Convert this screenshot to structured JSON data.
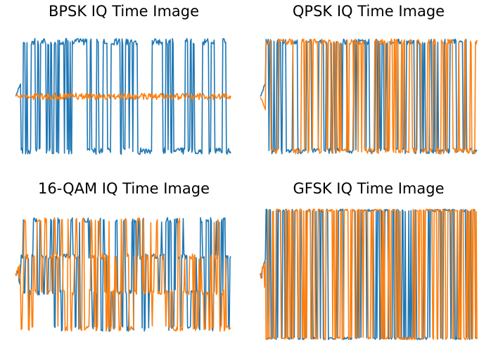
{
  "figure": {
    "colors": {
      "i_channel": "#1f77b4",
      "q_channel": "#ff7f0e",
      "background": "#ffffff"
    }
  },
  "chart_data": [
    {
      "type": "line",
      "title": "BPSK IQ Time Image",
      "axes_visible": false,
      "grid": false,
      "n_samples": 300,
      "ylim": [
        -1.3,
        1.3
      ],
      "pattern": "binary_symbols",
      "series": [
        {
          "channel": "I",
          "color": "#1f77b4",
          "amplitude": 1.0,
          "noise": 0.06,
          "symbol_levels": [
            -1,
            1
          ]
        },
        {
          "channel": "Q",
          "color": "#ff7f0e",
          "amplitude": 0.0,
          "noise": 0.06,
          "symbol_levels": [
            0
          ]
        }
      ]
    },
    {
      "type": "line",
      "title": "QPSK IQ Time Image",
      "axes_visible": false,
      "grid": false,
      "n_samples": 300,
      "ylim": [
        -1.3,
        1.3
      ],
      "pattern": "binary_symbols",
      "series": [
        {
          "channel": "I",
          "color": "#1f77b4",
          "amplitude": 1.0,
          "noise": 0.05,
          "symbol_levels": [
            -1,
            1
          ]
        },
        {
          "channel": "Q",
          "color": "#ff7f0e",
          "amplitude": 1.0,
          "noise": 0.05,
          "symbol_levels": [
            -1,
            1
          ]
        }
      ]
    },
    {
      "type": "line",
      "title": "16-QAM IQ Time Image",
      "axes_visible": false,
      "grid": false,
      "n_samples": 300,
      "ylim": [
        -1.3,
        1.3
      ],
      "pattern": "multilevel_symbols",
      "series": [
        {
          "channel": "I",
          "color": "#1f77b4",
          "amplitude": 1.0,
          "noise": 0.05,
          "symbol_levels": [
            -1,
            -0.33,
            0.33,
            1
          ]
        },
        {
          "channel": "Q",
          "color": "#ff7f0e",
          "amplitude": 1.0,
          "noise": 0.05,
          "symbol_levels": [
            -1,
            -0.33,
            0.33,
            1
          ]
        }
      ]
    },
    {
      "type": "line",
      "title": "GFSK IQ Time Image",
      "axes_visible": false,
      "grid": false,
      "n_samples": 300,
      "ylim": [
        -1.1,
        1.1
      ],
      "pattern": "saturated_oscillation",
      "series": [
        {
          "channel": "I",
          "color": "#1f77b4",
          "amplitude": 1.0,
          "noise": 0.02,
          "symbol_levels": [
            -1,
            1
          ]
        },
        {
          "channel": "Q",
          "color": "#ff7f0e",
          "amplitude": 1.0,
          "noise": 0.02,
          "symbol_levels": [
            -1,
            1
          ]
        }
      ]
    }
  ]
}
